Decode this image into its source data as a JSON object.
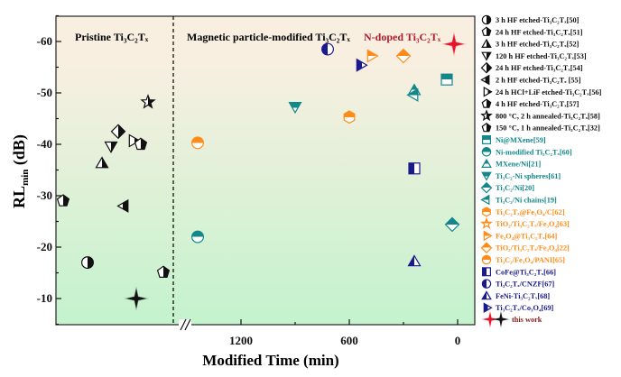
{
  "chart_data": {
    "type": "scatter",
    "xlabel": "Modified Time (min)",
    "ylabel_main": "RL",
    "ylabel_sub": "min",
    "ylabel_unit": " (dB)",
    "ylim": [
      -65,
      -5
    ],
    "y_reversed": true,
    "xlim": [
      0,
      1550
    ],
    "x_reversed": true,
    "x_axis_break": true,
    "yticks": [
      -60,
      -50,
      -40,
      -30,
      -20,
      -10
    ],
    "xticks": [
      1200,
      600,
      0
    ],
    "regions": [
      {
        "label": "Pristine Ti₃C₂Tₓ",
        "color": "#111111"
      },
      {
        "label": "Magnetic particle-modified Ti₃C₂Tₓ",
        "color": "#111111"
      },
      {
        "label": "N-doped Ti₃C₂Tₓ",
        "color": "#b01c2e"
      }
    ],
    "background_gradient": [
      "#f8efe1",
      "#c3f3cd"
    ],
    "colors": {
      "black": "#111111",
      "teal": "#13878a",
      "orange": "#ff8c1a",
      "navy": "#1a1a8c",
      "red": "#e8102a"
    },
    "legend": [
      {
        "label": "3 h HF etched-Ti₃C₂Tₓ[50]",
        "marker": "circle",
        "fill": "right",
        "color": "black"
      },
      {
        "label": "24 h HF etched-Ti₃C₂Tₓ[51]",
        "marker": "pentagon",
        "fill": "right",
        "color": "black"
      },
      {
        "label": "3 h HF etched-Ti₃C₂Tₓ[52]",
        "marker": "triangle",
        "fill": "right",
        "color": "black"
      },
      {
        "label": "120 h HF etched-Ti₃C₂Tₓ[53]",
        "marker": "triangle-down",
        "fill": "right",
        "color": "black"
      },
      {
        "label": "24 h HF etched-Ti₃C₂Tₓ[54]",
        "marker": "diamond",
        "fill": "right",
        "color": "black"
      },
      {
        "label": "2 h HF etched-Ti₃C₂Tₓ [55]",
        "marker": "triangle-left",
        "fill": "right",
        "color": "black"
      },
      {
        "label": "24 h HCl+LiF etched-Ti₃C₂Tₓ[56]",
        "marker": "triangle-right",
        "fill": "right",
        "color": "black"
      },
      {
        "label": "4 h HF etched-Ti₃C₂Tₓ[57]",
        "marker": "pentagon",
        "fill": "right",
        "color": "black"
      },
      {
        "label": "800 °C, 2 h annealed-Ti₃C₂Tₓ[58]",
        "marker": "star",
        "fill": "right",
        "color": "black"
      },
      {
        "label": "150 °C, 1 h annealed-Ti₃C₂Tₓ[32]",
        "marker": "pentagon",
        "fill": "right",
        "color": "black"
      },
      {
        "label": "Ni@MXene[59]",
        "marker": "square",
        "fill": "top",
        "color": "teal"
      },
      {
        "label": "Ni-modified Ti₃C₂Tₓ[60]",
        "marker": "circle",
        "fill": "top",
        "color": "teal"
      },
      {
        "label": "MXene/Ni[21]",
        "marker": "triangle",
        "fill": "top",
        "color": "teal"
      },
      {
        "label": "Ti₃C₂-Ni spheres[61]",
        "marker": "triangle-down",
        "fill": "top",
        "color": "teal"
      },
      {
        "label": "Ti₃C₂/Ni[20]",
        "marker": "diamond",
        "fill": "top",
        "color": "teal"
      },
      {
        "label": "Ti₃C₂/Ni chains[19]",
        "marker": "triangle-left",
        "fill": "top",
        "color": "teal"
      },
      {
        "label": "Ti₃C₂Tₓ@Fe₃O₄/C[62]",
        "marker": "hexagon",
        "fill": "top",
        "color": "orange"
      },
      {
        "label": "TiO₂/Ti₃C₂Tₓ/Fe₃O₄[63]",
        "marker": "star",
        "fill": "top",
        "color": "orange"
      },
      {
        "label": "Fe₃O₄@Ti₃C₂Tₓ[64]",
        "marker": "triangle-right",
        "fill": "top",
        "color": "orange"
      },
      {
        "label": "TiO₂/Ti₃C₂Tₓ/Fe₃O₄[22]",
        "marker": "diamond",
        "fill": "top",
        "color": "orange"
      },
      {
        "label": "Ti₃C₂/Fe₃O₄/PANI[65]",
        "marker": "circle",
        "fill": "top",
        "color": "orange"
      },
      {
        "label": "CoFe@Ti₃C₂Tₓ[66]",
        "marker": "square",
        "fill": "left",
        "color": "navy"
      },
      {
        "label": "Ti₃C₂Tₓ/CNZF[67]",
        "marker": "circle",
        "fill": "left",
        "color": "navy"
      },
      {
        "label": "FeNi-Ti₃C₂Tₓ[68]",
        "marker": "triangle",
        "fill": "left",
        "color": "navy"
      },
      {
        "label": "Ti₃C₂Tₓ/Co₃O₄[69]",
        "marker": "triangle-right",
        "fill": "left",
        "color": "navy"
      }
    ],
    "this_work_label": "this work",
    "pristine_points": [
      {
        "ref": 1,
        "y": -29
      },
      {
        "ref": 0,
        "y": -17
      },
      {
        "ref": 2,
        "y": -36.3
      },
      {
        "ref": 3,
        "y": -39.6
      },
      {
        "ref": 4,
        "y": -42.5
      },
      {
        "ref": 5,
        "y": -28
      },
      {
        "ref": 6,
        "y": -40.7
      },
      {
        "ref": 7,
        "y": -40
      },
      {
        "ref": 8,
        "y": -48.2
      },
      {
        "ref": 9,
        "y": -15.1
      },
      {
        "ref": "this-work-black",
        "y": -10
      }
    ],
    "modified_points": [
      {
        "ref": 20,
        "x": 1440,
        "y": -40.3
      },
      {
        "ref": 11,
        "x": 1440,
        "y": -22
      },
      {
        "ref": 13,
        "x": 900,
        "y": -47.3
      },
      {
        "ref": 16,
        "x": 600,
        "y": -45.3
      },
      {
        "ref": 22,
        "x": 720,
        "y": -58.5
      },
      {
        "ref": 24,
        "x": 540,
        "y": -55.4
      },
      {
        "ref": 18,
        "x": 480,
        "y": -57.2
      },
      {
        "ref": 19,
        "x": 300,
        "y": -57.2
      },
      {
        "ref": 10,
        "x": 60,
        "y": -52.6
      },
      {
        "ref": 12,
        "x": 240,
        "y": -50.5
      },
      {
        "ref": 15,
        "x": 240,
        "y": -49.6
      },
      {
        "ref": 21,
        "x": 240,
        "y": -35.3
      },
      {
        "ref": 14,
        "x": 30,
        "y": -24.4
      },
      {
        "ref": 23,
        "x": 240,
        "y": -17.2
      },
      {
        "ref": "this-work-red",
        "x": 20,
        "y": -59.5
      }
    ]
  }
}
